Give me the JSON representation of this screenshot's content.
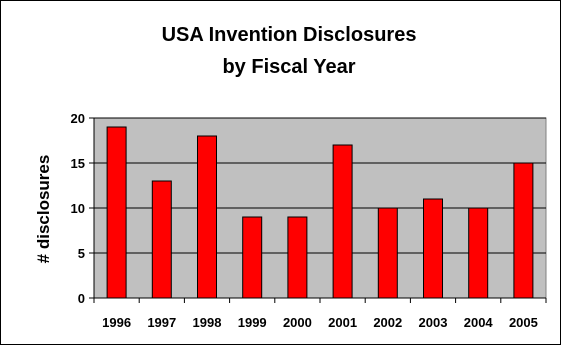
{
  "chart_data": {
    "type": "bar",
    "title": [
      "USA Invention Disclosures",
      "by Fiscal Year"
    ],
    "xlabel": "",
    "ylabel": "# disclosures",
    "categories": [
      "1996",
      "1997",
      "1998",
      "1999",
      "2000",
      "2001",
      "2002",
      "2003",
      "2004",
      "2005"
    ],
    "values": [
      19,
      13,
      18,
      9,
      9,
      17,
      10,
      11,
      10,
      15
    ],
    "ylim": [
      0,
      20
    ],
    "yticks": [
      0,
      5,
      10,
      15,
      20
    ],
    "grid": true,
    "legend": "none",
    "colors": {
      "bar": "#ff0000",
      "bar_stroke": "#000000",
      "plot_background": "#c0c0c0",
      "gridline": "#000000"
    }
  }
}
